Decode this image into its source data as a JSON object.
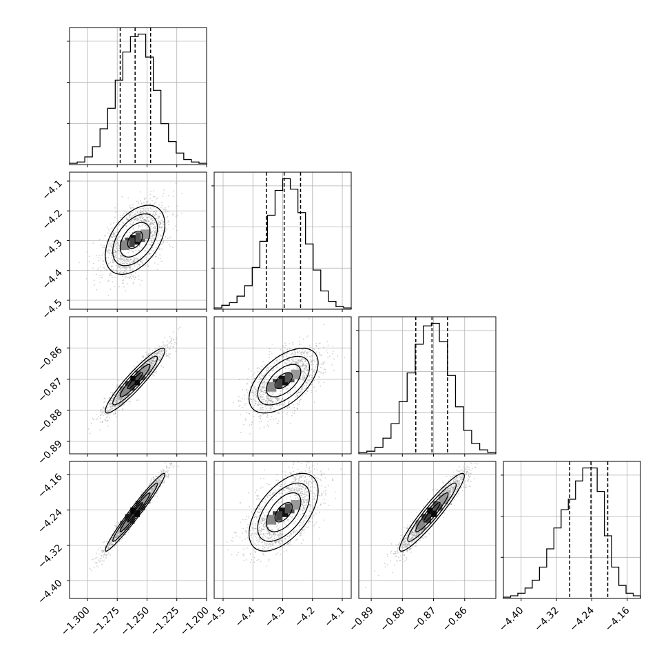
{
  "chart_data": {
    "type": "corner",
    "colors": {
      "frame": "#000000",
      "grid": "#b0b0b0",
      "points": "#9a9a9a",
      "contour": "#000000"
    },
    "quantiles_shown": [
      0.16,
      0.5,
      0.84
    ],
    "parameters": [
      {
        "id": "p1",
        "range": [
          -1.315,
          -1.2
        ],
        "ticks": [
          "-1.300",
          "-1.275",
          "-1.250",
          "-1.225",
          "-1.200"
        ],
        "tick_values": [
          -1.3,
          -1.275,
          -1.25,
          -1.225,
          -1.2
        ],
        "quantiles": [
          -1.2725,
          -1.26,
          -1.247
        ],
        "mean": -1.26,
        "sd": 0.0125,
        "hist": [
          1,
          2,
          6,
          14,
          28,
          44,
          66,
          88,
          100,
          102,
          84,
          58,
          32,
          18,
          9,
          4,
          2,
          1
        ]
      },
      {
        "id": "p2",
        "range": [
          -4.53,
          -4.07
        ],
        "ticks": [
          "-4.5",
          "-4.4",
          "-4.3",
          "-4.2",
          "-4.1"
        ],
        "tick_values": [
          -4.5,
          -4.4,
          -4.3,
          -4.2,
          -4.1
        ],
        "quantiles": [
          -4.355,
          -4.295,
          -4.24
        ],
        "mean": -4.297,
        "sd": 0.058,
        "hist": [
          1,
          3,
          5,
          10,
          18,
          32,
          52,
          72,
          91,
          100,
          92,
          74,
          50,
          30,
          14,
          6,
          2,
          1
        ]
      },
      {
        "id": "p3",
        "range": [
          -0.894,
          -0.85
        ],
        "ticks": [
          "-0.89",
          "-0.88",
          "-0.87",
          "-0.86"
        ],
        "tick_values": [
          -0.89,
          -0.88,
          -0.87,
          -0.86
        ],
        "quantiles": [
          -0.8757,
          -0.8705,
          -0.8655
        ],
        "mean": -0.8705,
        "sd": 0.0052,
        "hist": [
          1,
          2,
          5,
          12,
          23,
          40,
          62,
          84,
          98,
          100,
          86,
          60,
          36,
          18,
          8,
          3,
          1
        ]
      },
      {
        "id": "p4",
        "range": [
          -4.44,
          -4.13
        ],
        "ticks": [
          "-4.40",
          "-4.32",
          "-4.24",
          "-4.16"
        ],
        "tick_values": [
          -4.4,
          -4.32,
          -4.24,
          -4.16
        ],
        "quantiles": [
          -4.29,
          -4.242,
          -4.204
        ],
        "mean": -4.245,
        "sd": 0.044,
        "hist": [
          1,
          2,
          4,
          8,
          14,
          24,
          38,
          54,
          68,
          76,
          90,
          100,
          100,
          82,
          48,
          24,
          10,
          4,
          2
        ]
      }
    ],
    "correlations": {
      "2_1": 0.45,
      "3_1": 0.93,
      "3_2": 0.55,
      "4_1": 0.975,
      "4_2": 0.55,
      "4_3": 0.94
    }
  }
}
